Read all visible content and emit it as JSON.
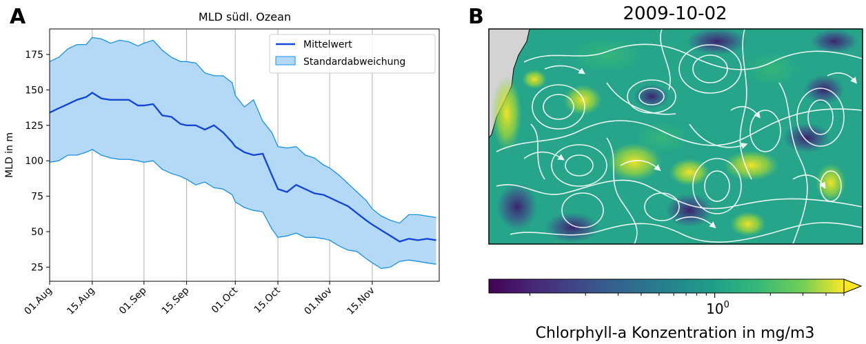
{
  "panel_a": {
    "letter": "A",
    "chart_data": {
      "type": "line",
      "title": "MLD südl. Ozean",
      "xlabel": "",
      "ylabel": "MLD in m",
      "ylim": [
        15,
        193
      ],
      "xlim": [
        0,
        128
      ],
      "grid": "vertical",
      "yticks": [
        25,
        50,
        75,
        100,
        125,
        150,
        175
      ],
      "xticks": [
        {
          "label": "01.Aug",
          "x": 0
        },
        {
          "label": "15.Aug",
          "x": 14
        },
        {
          "label": "01.Sep",
          "x": 31
        },
        {
          "label": "15.Sep",
          "x": 45
        },
        {
          "label": "01.Oct",
          "x": 61
        },
        {
          "label": "15.Oct",
          "x": 75
        },
        {
          "label": "01.Nov",
          "x": 92
        },
        {
          "label": "15.Nov",
          "x": 106
        }
      ],
      "legend": {
        "placement": "top-right",
        "entries": [
          {
            "label": "Mittelwert",
            "kind": "line",
            "color": "#1446d6"
          },
          {
            "label": "Standardabweichung",
            "kind": "patch",
            "color": "#b3d9f7",
            "edge": "#1a8fe0"
          }
        ]
      },
      "series": [
        {
          "name": "Mittelwert",
          "color": "#1446d6",
          "x": [
            0,
            3,
            6,
            9,
            12,
            14,
            17,
            20,
            23,
            26,
            29,
            31,
            34,
            37,
            40,
            43,
            45,
            48,
            51,
            54,
            57,
            60,
            61,
            64,
            67,
            70,
            73,
            75,
            78,
            81,
            84,
            87,
            90,
            92,
            95,
            98,
            101,
            104,
            106,
            109,
            112,
            115,
            118,
            121,
            124,
            127
          ],
          "y": [
            134,
            137,
            140,
            143,
            145,
            148,
            144,
            143,
            143,
            143,
            139,
            139,
            140,
            132,
            131,
            126,
            125,
            125,
            122,
            125,
            120,
            113,
            110,
            106,
            104,
            105,
            90,
            80,
            78,
            83,
            80,
            77,
            76,
            74,
            71,
            68,
            63,
            58,
            55,
            51,
            47,
            43,
            45,
            44,
            45,
            44
          ]
        },
        {
          "name": "Standardabweichung (obere Grenze)",
          "color": "#1a8fe0",
          "x": [
            0,
            3,
            6,
            9,
            12,
            14,
            17,
            20,
            23,
            26,
            29,
            31,
            34,
            37,
            40,
            43,
            45,
            48,
            51,
            54,
            57,
            60,
            61,
            64,
            67,
            70,
            73,
            75,
            78,
            81,
            84,
            87,
            90,
            92,
            95,
            98,
            101,
            104,
            106,
            109,
            112,
            115,
            118,
            121,
            124,
            127
          ],
          "y": [
            170,
            173,
            179,
            182,
            182,
            187,
            186,
            183,
            185,
            184,
            181,
            183,
            185,
            178,
            173,
            170,
            170,
            169,
            162,
            160,
            160,
            155,
            146,
            138,
            143,
            128,
            120,
            110,
            109,
            110,
            104,
            102,
            97,
            95,
            90,
            84,
            78,
            72,
            66,
            61,
            58,
            56,
            62,
            62,
            61,
            60
          ]
        },
        {
          "name": "Standardabweichung (untere Grenze)",
          "color": "#1a8fe0",
          "x": [
            0,
            3,
            6,
            9,
            12,
            14,
            17,
            20,
            23,
            26,
            29,
            31,
            34,
            37,
            40,
            43,
            45,
            48,
            51,
            54,
            57,
            60,
            61,
            64,
            67,
            70,
            73,
            75,
            78,
            81,
            84,
            87,
            90,
            92,
            95,
            98,
            101,
            104,
            106,
            109,
            112,
            115,
            118,
            121,
            124,
            127
          ],
          "y": [
            99,
            100,
            104,
            104,
            106,
            108,
            104,
            102,
            101,
            101,
            100,
            99,
            100,
            94,
            91,
            89,
            87,
            83,
            85,
            81,
            80,
            76,
            71,
            67,
            65,
            64,
            52,
            46,
            47,
            49,
            46,
            46,
            45,
            44,
            40,
            37,
            36,
            31,
            28,
            24,
            25,
            29,
            30,
            29,
            28,
            27
          ]
        }
      ]
    }
  },
  "panel_b": {
    "letter": "B",
    "title": "2009-10-02",
    "colorbar": {
      "label": "Chlorphyll-a Konzentration in mg/m3",
      "scale": "log",
      "tick_label_base": "10",
      "tick_label_exp": "0",
      "range": [
        0.06,
        5
      ]
    },
    "map_colors": [
      "#440154",
      "#3b528b",
      "#21918c",
      "#5ec962",
      "#fde725"
    ]
  }
}
